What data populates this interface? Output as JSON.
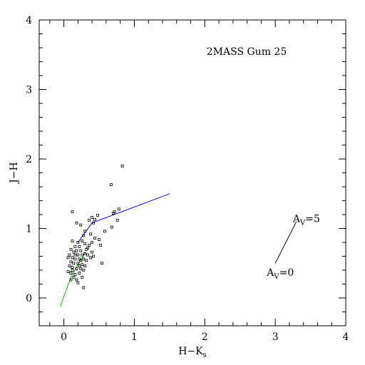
{
  "chart_data": {
    "type": "scatter",
    "title": "2MASS Gum 25",
    "xlabel": "H−K",
    "xlabel_sub": "s",
    "ylabel": "J−H",
    "xlim": [
      -0.35,
      4.0
    ],
    "ylim": [
      -0.4,
      4.0
    ],
    "x_ticks": [
      0,
      1,
      2,
      3,
      4
    ],
    "y_ticks": [
      0,
      1,
      2,
      3,
      4
    ],
    "x_ticks_minor": [
      -0.2,
      0.2,
      0.4,
      0.6,
      0.8,
      1.2,
      1.4,
      1.6,
      1.8,
      2.2,
      2.4,
      2.6,
      2.8,
      3.2,
      3.4,
      3.6,
      3.8
    ],
    "y_ticks_minor": [
      -0.2,
      0.2,
      0.4,
      0.6,
      0.8,
      1.2,
      1.4,
      1.6,
      1.8,
      2.2,
      2.4,
      2.6,
      2.8,
      3.2,
      3.4,
      3.6,
      3.8
    ],
    "grid": false,
    "points": [
      [
        0.83,
        1.9
      ],
      [
        0.67,
        1.63
      ],
      [
        0.78,
        1.28
      ],
      [
        0.72,
        1.24
      ],
      [
        0.7,
        1.22
      ],
      [
        0.76,
        1.12
      ],
      [
        0.48,
        1.19
      ],
      [
        0.4,
        1.16
      ],
      [
        0.44,
        1.13
      ],
      [
        0.36,
        1.12
      ],
      [
        0.42,
        1.08
      ],
      [
        0.12,
        1.24
      ],
      [
        0.68,
        1.02
      ],
      [
        0.58,
        0.96
      ],
      [
        0.5,
        0.84
      ],
      [
        0.52,
        0.76
      ],
      [
        0.54,
        0.5
      ],
      [
        0.3,
        0.96
      ],
      [
        0.38,
        0.92
      ],
      [
        0.44,
        0.86
      ],
      [
        0.4,
        0.8
      ],
      [
        0.36,
        0.76
      ],
      [
        0.34,
        0.72
      ],
      [
        0.4,
        0.66
      ],
      [
        0.38,
        0.58
      ],
      [
        0.42,
        0.6
      ],
      [
        0.18,
        1.08
      ],
      [
        0.24,
        1.05
      ],
      [
        0.28,
        0.9
      ],
      [
        0.26,
        0.82
      ],
      [
        0.2,
        0.8
      ],
      [
        0.12,
        0.82
      ],
      [
        0.16,
        0.74
      ],
      [
        0.22,
        0.74
      ],
      [
        0.3,
        0.78
      ],
      [
        0.32,
        0.7
      ],
      [
        0.24,
        0.68
      ],
      [
        0.18,
        0.68
      ],
      [
        0.1,
        0.7
      ],
      [
        0.14,
        0.66
      ],
      [
        0.2,
        0.62
      ],
      [
        0.26,
        0.62
      ],
      [
        0.3,
        0.64
      ],
      [
        0.34,
        0.62
      ],
      [
        0.08,
        0.62
      ],
      [
        0.06,
        0.58
      ],
      [
        0.12,
        0.58
      ],
      [
        0.16,
        0.56
      ],
      [
        0.22,
        0.56
      ],
      [
        0.28,
        0.56
      ],
      [
        0.32,
        0.54
      ],
      [
        0.1,
        0.52
      ],
      [
        0.14,
        0.5
      ],
      [
        0.2,
        0.5
      ],
      [
        0.26,
        0.48
      ],
      [
        0.3,
        0.46
      ],
      [
        0.08,
        0.46
      ],
      [
        0.12,
        0.44
      ],
      [
        0.18,
        0.42
      ],
      [
        0.24,
        0.42
      ],
      [
        0.28,
        0.4
      ],
      [
        0.06,
        0.38
      ],
      [
        0.1,
        0.36
      ],
      [
        0.16,
        0.34
      ],
      [
        0.22,
        0.36
      ],
      [
        0.26,
        0.3
      ],
      [
        0.14,
        0.3
      ],
      [
        0.18,
        0.26
      ],
      [
        0.1,
        0.26
      ],
      [
        0.2,
        0.22
      ],
      [
        0.12,
        0.4
      ],
      [
        0.24,
        0.54
      ],
      [
        0.28,
        0.15
      ],
      [
        0.16,
        0.62
      ],
      [
        0.22,
        0.46
      ]
    ],
    "point_color": "#000000",
    "lines": [
      {
        "color": "#0000cc",
        "points": [
          [
            0.2,
            0.8
          ],
          [
            0.4,
            1.08
          ],
          [
            1.5,
            1.5
          ]
        ]
      },
      {
        "color": "#00bb00",
        "points": [
          [
            -0.05,
            -0.12
          ],
          [
            0.1,
            0.3
          ],
          [
            0.2,
            0.48
          ],
          [
            0.3,
            0.65
          ]
        ]
      },
      {
        "color": "#000000",
        "points": [
          [
            3.0,
            0.5
          ],
          [
            3.3,
            1.1
          ]
        ]
      }
    ],
    "annotations": [
      {
        "base": "A",
        "sub": "V",
        "text": "=5",
        "x": 3.25,
        "y": 1.09
      },
      {
        "base": "A",
        "sub": "V",
        "text": "=0",
        "x": 2.88,
        "y": 0.32
      }
    ]
  }
}
